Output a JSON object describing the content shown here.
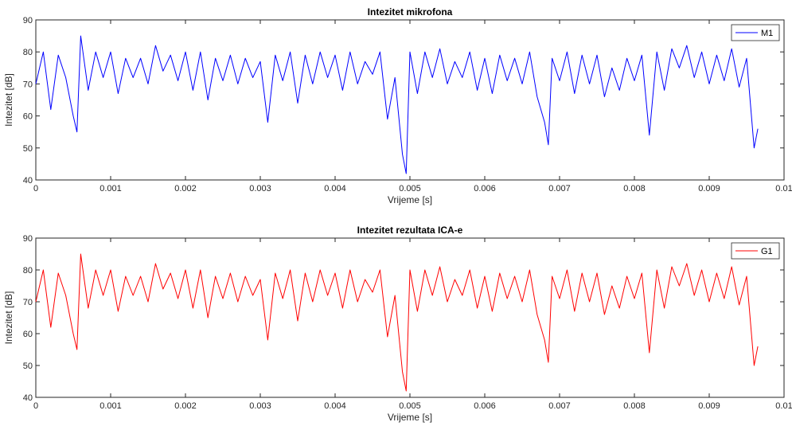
{
  "figure": {
    "background": "#ffffff"
  },
  "chart_data": [
    {
      "type": "line",
      "title": "Intezitet mikrofona",
      "xlabel": "Vrijeme [s]",
      "ylabel": "Intezitet [dB]",
      "xlim": [
        0,
        0.01
      ],
      "ylim": [
        40,
        90
      ],
      "xticks": [
        0,
        0.001,
        0.002,
        0.003,
        0.004,
        0.005,
        0.006,
        0.007,
        0.008,
        0.009,
        0.01
      ],
      "xtick_labels": [
        "0",
        "0.001",
        "0.002",
        "0.003",
        "0.004",
        "0.005",
        "0.006",
        "0.007",
        "0.008",
        "0.009",
        "0.01"
      ],
      "yticks": [
        40,
        50,
        60,
        70,
        80,
        90
      ],
      "ytick_labels": [
        "40",
        "50",
        "60",
        "70",
        "80",
        "90"
      ],
      "grid": false,
      "legend_position": "top-right",
      "series": [
        {
          "name": "M1",
          "color": "#0000ff",
          "x": [
            0,
            0.0001,
            0.0002,
            0.0003,
            0.0004,
            0.0005,
            0.00055,
            0.0006,
            0.0007,
            0.0008,
            0.0009,
            0.001,
            0.0011,
            0.0012,
            0.0013,
            0.0014,
            0.0015,
            0.0016,
            0.0017,
            0.0018,
            0.0019,
            0.002,
            0.0021,
            0.0022,
            0.0023,
            0.0024,
            0.0025,
            0.0026,
            0.0027,
            0.0028,
            0.0029,
            0.003,
            0.0031,
            0.0032,
            0.0033,
            0.0034,
            0.0035,
            0.0036,
            0.0037,
            0.0038,
            0.0039,
            0.004,
            0.0041,
            0.0042,
            0.0043,
            0.0044,
            0.0045,
            0.0046,
            0.0047,
            0.0048,
            0.0049,
            0.00495,
            0.005,
            0.0051,
            0.0052,
            0.0053,
            0.0054,
            0.0055,
            0.0056,
            0.0057,
            0.0058,
            0.0059,
            0.006,
            0.0061,
            0.0062,
            0.0063,
            0.0064,
            0.0065,
            0.0066,
            0.0067,
            0.0068,
            0.00685,
            0.0069,
            0.007,
            0.0071,
            0.0072,
            0.0073,
            0.0074,
            0.0075,
            0.0076,
            0.0077,
            0.0078,
            0.0079,
            0.008,
            0.0081,
            0.0082,
            0.0083,
            0.0084,
            0.0085,
            0.0086,
            0.0087,
            0.0088,
            0.0089,
            0.009,
            0.0091,
            0.0092,
            0.0093,
            0.0094,
            0.0095,
            0.0096,
            0.00965
          ],
          "values": [
            70,
            80,
            62,
            79,
            72,
            60,
            55,
            85,
            68,
            80,
            72,
            80,
            67,
            78,
            72,
            78,
            70,
            82,
            74,
            79,
            71,
            80,
            68,
            80,
            65,
            78,
            71,
            79,
            70,
            78,
            72,
            77,
            58,
            79,
            71,
            80,
            64,
            79,
            70,
            80,
            72,
            79,
            68,
            80,
            70,
            77,
            73,
            80,
            59,
            72,
            48,
            42,
            80,
            67,
            80,
            72,
            81,
            70,
            77,
            72,
            80,
            68,
            78,
            67,
            79,
            71,
            78,
            70,
            80,
            66,
            58,
            51,
            78,
            71,
            80,
            67,
            79,
            70,
            79,
            66,
            75,
            68,
            78,
            71,
            79,
            54,
            80,
            68,
            81,
            75,
            82,
            72,
            80,
            70,
            79,
            71,
            81,
            69,
            78,
            50,
            56
          ]
        }
      ]
    },
    {
      "type": "line",
      "title": "Intezitet rezultata ICA-e",
      "xlabel": "Vrijeme [s]",
      "ylabel": "Intezitet [dB]",
      "xlim": [
        0,
        0.01
      ],
      "ylim": [
        40,
        90
      ],
      "xticks": [
        0,
        0.001,
        0.002,
        0.003,
        0.004,
        0.005,
        0.006,
        0.007,
        0.008,
        0.009,
        0.01
      ],
      "xtick_labels": [
        "0",
        "0.001",
        "0.002",
        "0.003",
        "0.004",
        "0.005",
        "0.006",
        "0.007",
        "0.008",
        "0.009",
        "0.01"
      ],
      "yticks": [
        40,
        50,
        60,
        70,
        80,
        90
      ],
      "ytick_labels": [
        "40",
        "50",
        "60",
        "70",
        "80",
        "90"
      ],
      "grid": false,
      "legend_position": "top-right",
      "series": [
        {
          "name": "G1",
          "color": "#ff0000",
          "x": [
            0,
            0.0001,
            0.0002,
            0.0003,
            0.0004,
            0.0005,
            0.00055,
            0.0006,
            0.0007,
            0.0008,
            0.0009,
            0.001,
            0.0011,
            0.0012,
            0.0013,
            0.0014,
            0.0015,
            0.0016,
            0.0017,
            0.0018,
            0.0019,
            0.002,
            0.0021,
            0.0022,
            0.0023,
            0.0024,
            0.0025,
            0.0026,
            0.0027,
            0.0028,
            0.0029,
            0.003,
            0.0031,
            0.0032,
            0.0033,
            0.0034,
            0.0035,
            0.0036,
            0.0037,
            0.0038,
            0.0039,
            0.004,
            0.0041,
            0.0042,
            0.0043,
            0.0044,
            0.0045,
            0.0046,
            0.0047,
            0.0048,
            0.0049,
            0.00495,
            0.005,
            0.0051,
            0.0052,
            0.0053,
            0.0054,
            0.0055,
            0.0056,
            0.0057,
            0.0058,
            0.0059,
            0.006,
            0.0061,
            0.0062,
            0.0063,
            0.0064,
            0.0065,
            0.0066,
            0.0067,
            0.0068,
            0.00685,
            0.0069,
            0.007,
            0.0071,
            0.0072,
            0.0073,
            0.0074,
            0.0075,
            0.0076,
            0.0077,
            0.0078,
            0.0079,
            0.008,
            0.0081,
            0.0082,
            0.0083,
            0.0084,
            0.0085,
            0.0086,
            0.0087,
            0.0088,
            0.0089,
            0.009,
            0.0091,
            0.0092,
            0.0093,
            0.0094,
            0.0095,
            0.0096,
            0.00965
          ],
          "values": [
            70,
            80,
            62,
            79,
            72,
            60,
            55,
            85,
            68,
            80,
            72,
            80,
            67,
            78,
            72,
            78,
            70,
            82,
            74,
            79,
            71,
            80,
            68,
            80,
            65,
            78,
            71,
            79,
            70,
            78,
            72,
            77,
            58,
            79,
            71,
            80,
            64,
            79,
            70,
            80,
            72,
            79,
            68,
            80,
            70,
            77,
            73,
            80,
            59,
            72,
            48,
            42,
            80,
            67,
            80,
            72,
            81,
            70,
            77,
            72,
            80,
            68,
            78,
            67,
            79,
            71,
            78,
            70,
            80,
            66,
            58,
            51,
            78,
            71,
            80,
            67,
            79,
            70,
            79,
            66,
            75,
            68,
            78,
            71,
            79,
            54,
            80,
            68,
            81,
            75,
            82,
            72,
            80,
            70,
            79,
            71,
            81,
            69,
            78,
            50,
            56
          ]
        }
      ]
    }
  ]
}
